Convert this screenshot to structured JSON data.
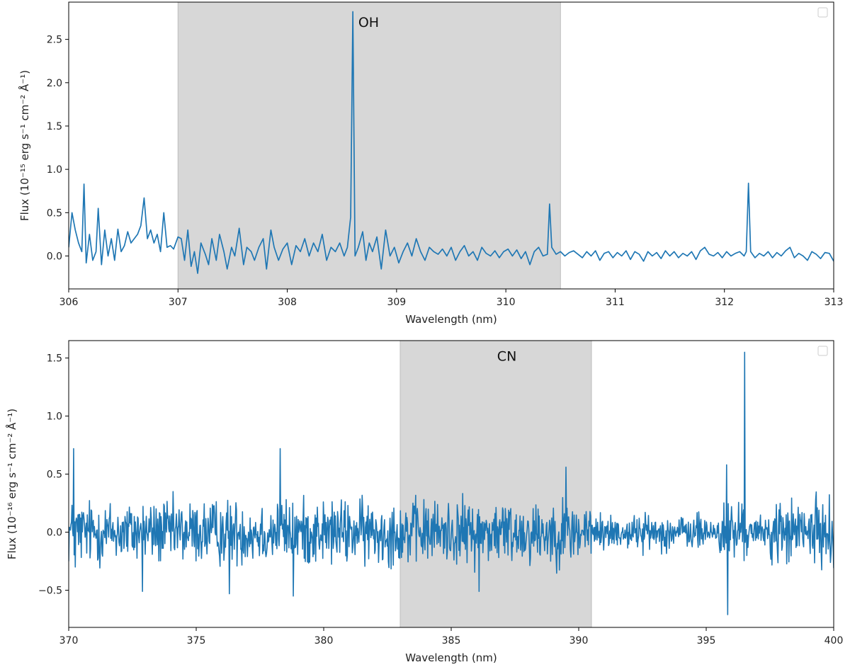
{
  "chart_data": [
    {
      "type": "line",
      "title": "",
      "xlabel": "Wavelength (nm)",
      "ylabel": "Flux (10⁻¹⁵ erg s⁻¹ cm⁻² Å⁻¹)",
      "xlim": [
        306,
        313
      ],
      "ylim": [
        -0.38,
        2.93
      ],
      "xticks": [
        306,
        307,
        308,
        309,
        310,
        311,
        312,
        313
      ],
      "xtick_labels": [
        "306",
        "307",
        "308",
        "309",
        "310",
        "311",
        "312",
        "313"
      ],
      "yticks": [
        0.0,
        0.5,
        1.0,
        1.5,
        2.0,
        2.5
      ],
      "ytick_labels": [
        "0.0",
        "0.5",
        "1.0",
        "1.5",
        "2.0",
        "2.5"
      ],
      "shaded_region": [
        307.0,
        310.5
      ],
      "annotation": {
        "text": "OH",
        "x": 308.65,
        "y": 2.7
      },
      "grid": false,
      "legend": "top-right (empty)",
      "line_color": "#1f77b4",
      "shade_color": "#d7d7d7",
      "series": [
        {
          "x": [
            306.0,
            306.03,
            306.06,
            306.09,
            306.12,
            306.14,
            306.16,
            306.19,
            306.22,
            306.25,
            306.27,
            306.3,
            306.33,
            306.36,
            306.39,
            306.42,
            306.45,
            306.48,
            306.51,
            306.54,
            306.57,
            306.6,
            306.63,
            306.66,
            306.69,
            306.72,
            306.75,
            306.78,
            306.81,
            306.84,
            306.87,
            306.9,
            306.93,
            306.96,
            307.0,
            307.03,
            307.06,
            307.09,
            307.12,
            307.15,
            307.18,
            307.21,
            307.25,
            307.28,
            307.31,
            307.35,
            307.38,
            307.42,
            307.45,
            307.49,
            307.52,
            307.56,
            307.6,
            307.63,
            307.67,
            307.7,
            307.74,
            307.78,
            307.81,
            307.85,
            307.88,
            307.92,
            307.96,
            308.0,
            308.04,
            308.08,
            308.12,
            308.16,
            308.2,
            308.24,
            308.28,
            308.32,
            308.36,
            308.4,
            308.44,
            308.48,
            308.52,
            308.55,
            308.58,
            308.6,
            308.62,
            308.65,
            308.69,
            308.72,
            308.75,
            308.78,
            308.82,
            308.86,
            308.9,
            308.94,
            308.98,
            309.02,
            309.06,
            309.1,
            309.14,
            309.18,
            309.22,
            309.26,
            309.3,
            309.34,
            309.38,
            309.42,
            309.46,
            309.5,
            309.54,
            309.58,
            309.62,
            309.66,
            309.7,
            309.74,
            309.78,
            309.82,
            309.86,
            309.9,
            309.94,
            309.98,
            310.02,
            310.06,
            310.1,
            310.14,
            310.18,
            310.22,
            310.26,
            310.3,
            310.34,
            310.38,
            310.4,
            310.42,
            310.46,
            310.5,
            310.54,
            310.58,
            310.62,
            310.66,
            310.7,
            310.74,
            310.78,
            310.82,
            310.86,
            310.9,
            310.94,
            310.98,
            311.02,
            311.06,
            311.1,
            311.14,
            311.18,
            311.22,
            311.26,
            311.3,
            311.34,
            311.38,
            311.42,
            311.46,
            311.5,
            311.54,
            311.58,
            311.62,
            311.66,
            311.7,
            311.74,
            311.78,
            311.82,
            311.86,
            311.9,
            311.94,
            311.98,
            312.02,
            312.06,
            312.1,
            312.14,
            312.18,
            312.2,
            312.22,
            312.24,
            312.28,
            312.32,
            312.36,
            312.4,
            312.44,
            312.48,
            312.52,
            312.56,
            312.6,
            312.64,
            312.68,
            312.72,
            312.76,
            312.8,
            312.84,
            312.88,
            312.92,
            312.96,
            313.0
          ],
          "values": [
            0.1,
            0.5,
            0.3,
            0.15,
            0.05,
            0.83,
            -0.08,
            0.25,
            -0.05,
            0.05,
            0.55,
            -0.1,
            0.3,
            0.0,
            0.2,
            -0.05,
            0.31,
            0.05,
            0.12,
            0.28,
            0.15,
            0.2,
            0.25,
            0.35,
            0.67,
            0.2,
            0.3,
            0.15,
            0.25,
            0.05,
            0.5,
            0.1,
            0.12,
            0.08,
            0.22,
            0.2,
            -0.05,
            0.3,
            -0.12,
            0.05,
            -0.2,
            0.15,
            0.02,
            -0.1,
            0.2,
            -0.05,
            0.25,
            0.05,
            -0.15,
            0.1,
            0.0,
            0.32,
            -0.1,
            0.1,
            0.05,
            -0.05,
            0.1,
            0.2,
            -0.15,
            0.3,
            0.1,
            -0.05,
            0.08,
            0.15,
            -0.1,
            0.12,
            0.05,
            0.2,
            0.0,
            0.15,
            0.05,
            0.25,
            -0.05,
            0.1,
            0.05,
            0.15,
            0.0,
            0.1,
            0.45,
            2.82,
            0.0,
            0.1,
            0.28,
            -0.05,
            0.15,
            0.05,
            0.22,
            -0.15,
            0.3,
            0.0,
            0.1,
            -0.08,
            0.05,
            0.15,
            0.0,
            0.2,
            0.05,
            -0.05,
            0.1,
            0.05,
            0.02,
            0.08,
            0.0,
            0.1,
            -0.05,
            0.05,
            0.12,
            0.0,
            0.05,
            -0.05,
            0.1,
            0.03,
            0.0,
            0.06,
            -0.02,
            0.05,
            0.08,
            0.0,
            0.07,
            -0.03,
            0.05,
            -0.1,
            0.05,
            0.1,
            0.0,
            0.02,
            0.6,
            0.1,
            0.02,
            0.05,
            0.0,
            0.04,
            0.06,
            0.02,
            -0.02,
            0.05,
            0.0,
            0.06,
            -0.05,
            0.03,
            0.05,
            -0.02,
            0.04,
            0.0,
            0.06,
            -0.04,
            0.05,
            0.02,
            -0.06,
            0.05,
            0.0,
            0.04,
            -0.03,
            0.06,
            0.0,
            0.05,
            -0.02,
            0.03,
            0.0,
            0.05,
            -0.04,
            0.06,
            0.1,
            0.02,
            0.0,
            0.04,
            -0.02,
            0.05,
            0.0,
            0.03,
            0.05,
            0.0,
            0.05,
            0.84,
            0.05,
            -0.02,
            0.03,
            0.0,
            0.05,
            -0.02,
            0.04,
            0.0,
            0.06,
            0.1,
            -0.02,
            0.03,
            0.0,
            -0.05,
            0.05,
            0.02,
            -0.03,
            0.04,
            0.03,
            -0.06
          ]
        }
      ]
    },
    {
      "type": "line",
      "title": "",
      "xlabel": "Wavelength (nm)",
      "ylabel": "Flux (10⁻¹⁶ erg s⁻¹ cm⁻² Å⁻¹)",
      "xlim": [
        370,
        400
      ],
      "ylim": [
        -0.82,
        1.65
      ],
      "xticks": [
        370,
        375,
        380,
        385,
        390,
        395,
        400
      ],
      "xtick_labels": [
        "370",
        "375",
        "380",
        "385",
        "390",
        "395",
        "400"
      ],
      "yticks": [
        -0.5,
        0.0,
        0.5,
        1.0,
        1.5
      ],
      "ytick_labels": [
        "−0.5",
        "0.0",
        "0.5",
        "1.0",
        "1.5"
      ],
      "shaded_region": [
        383.0,
        390.5
      ],
      "annotation": {
        "text": "CN",
        "x": 386.8,
        "y": 1.52
      },
      "grid": false,
      "legend": "top-right (empty)",
      "line_color": "#1f77b4",
      "shade_color": "#d7d7d7",
      "series": [
        {
          "x_start": 370.0,
          "x_end": 400.0,
          "noise_amplitude": 0.17,
          "spikes": [
            {
              "x": 370.2,
              "y": 0.72
            },
            {
              "x": 370.25,
              "y": -0.3
            },
            {
              "x": 372.9,
              "y": -0.51
            },
            {
              "x": 376.3,
              "y": -0.53
            },
            {
              "x": 378.3,
              "y": 0.72
            },
            {
              "x": 378.8,
              "y": -0.55
            },
            {
              "x": 386.1,
              "y": -0.51
            },
            {
              "x": 389.5,
              "y": 0.56
            },
            {
              "x": 395.8,
              "y": 0.58
            },
            {
              "x": 395.85,
              "y": -0.71
            },
            {
              "x": 396.5,
              "y": 1.55
            }
          ]
        }
      ]
    }
  ]
}
